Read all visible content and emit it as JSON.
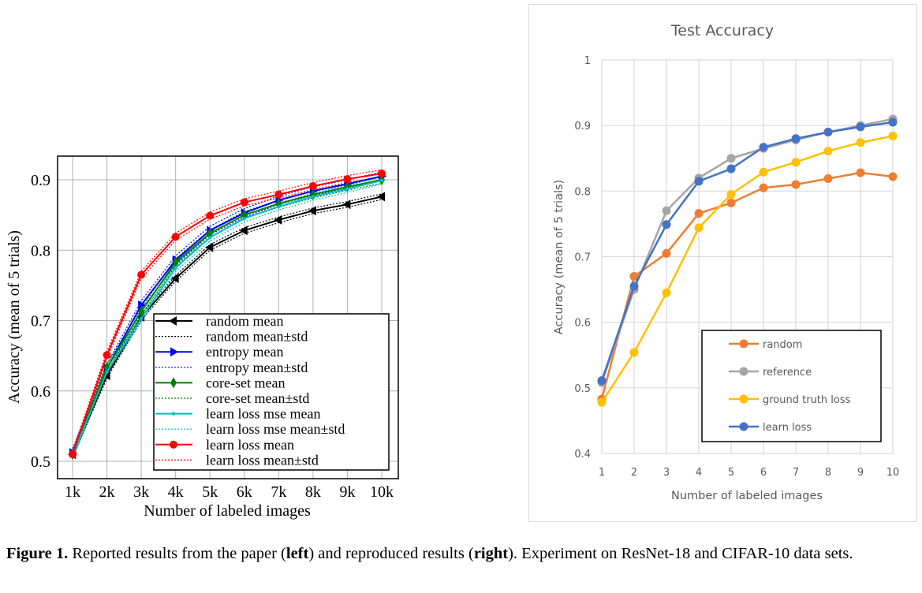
{
  "chart_data": [
    {
      "type": "line",
      "xlabel": "Number of labeled images",
      "ylabel": "Accuracy (mean of 5 trials)",
      "categories": [
        "1k",
        "2k",
        "3k",
        "4k",
        "5k",
        "6k",
        "7k",
        "8k",
        "9k",
        "10k"
      ],
      "yticks": [
        "0.5",
        "0.6",
        "0.7",
        "0.8",
        "0.9"
      ],
      "ylim": [
        0.5,
        0.9
      ],
      "grid": true,
      "legend_position": "bottom-right",
      "series": [
        {
          "name": "random mean",
          "std_name": "random mean±std",
          "color": "#000000",
          "marker": "triangle-left",
          "std": 0.004,
          "values": [
            0.51,
            0.622,
            0.705,
            0.76,
            0.804,
            0.828,
            0.843,
            0.856,
            0.865,
            0.876
          ]
        },
        {
          "name": "entropy mean",
          "std_name": "entropy mean±std",
          "color": "#0000ff",
          "marker": "triangle-right",
          "std": 0.006,
          "values": [
            0.512,
            0.632,
            0.722,
            0.786,
            0.828,
            0.853,
            0.871,
            0.884,
            0.894,
            0.905
          ]
        },
        {
          "name": "core-set mean",
          "std_name": "core-set mean±std",
          "color": "#008000",
          "marker": "diamond",
          "std": 0.005,
          "values": [
            0.51,
            0.633,
            0.713,
            0.783,
            0.824,
            0.85,
            0.866,
            0.879,
            0.89,
            0.9
          ]
        },
        {
          "name": "learn loss mse mean",
          "std_name": "learn loss mse mean±std",
          "color": "#00bfbf",
          "marker": "dot",
          "std": 0.005,
          "values": [
            0.508,
            0.627,
            0.703,
            0.775,
            0.818,
            0.845,
            0.862,
            0.876,
            0.887,
            0.899
          ]
        },
        {
          "name": "learn loss mean",
          "std_name": "learn loss mean±std",
          "color": "#ff0000",
          "marker": "circle",
          "std": 0.005,
          "values": [
            0.51,
            0.651,
            0.765,
            0.819,
            0.849,
            0.868,
            0.879,
            0.891,
            0.901,
            0.909
          ]
        }
      ]
    },
    {
      "type": "line",
      "title": "Test Accuracy",
      "xlabel": "Number of labeled images",
      "ylabel": "Accuracy (mean of 5 trials)",
      "categories": [
        "1",
        "2",
        "3",
        "4",
        "5",
        "6",
        "7",
        "8",
        "9",
        "10"
      ],
      "yticks": [
        "0.4",
        "0.5",
        "0.6",
        "0.7",
        "0.8",
        "0.9",
        "1"
      ],
      "ylim": [
        0.4,
        1.0
      ],
      "grid": true,
      "legend_position": "bottom-right",
      "series": [
        {
          "name": "random",
          "color": "#ed7d31",
          "values": [
            0.483,
            0.67,
            0.705,
            0.766,
            0.782,
            0.805,
            0.81,
            0.819,
            0.828,
            0.822
          ]
        },
        {
          "name": "reference",
          "color": "#a5a5a5",
          "values": [
            0.508,
            0.65,
            0.77,
            0.82,
            0.85,
            0.865,
            0.878,
            0.89,
            0.9,
            0.91
          ]
        },
        {
          "name": "ground truth loss",
          "color": "#ffc000",
          "values": [
            0.478,
            0.554,
            0.645,
            0.744,
            0.795,
            0.829,
            0.844,
            0.861,
            0.874,
            0.884
          ]
        },
        {
          "name": "learn loss",
          "color": "#4472c4",
          "values": [
            0.511,
            0.655,
            0.749,
            0.815,
            0.834,
            0.867,
            0.88,
            0.89,
            0.898,
            0.905
          ]
        }
      ]
    }
  ],
  "caption": {
    "label": "Figure 1.",
    "t1": " Reported results from the paper (",
    "b1": "left",
    "t2": ") and reproduced results (",
    "b2": "right",
    "t3": "). Experiment on ResNet-18 and CIFAR-10 data sets."
  }
}
